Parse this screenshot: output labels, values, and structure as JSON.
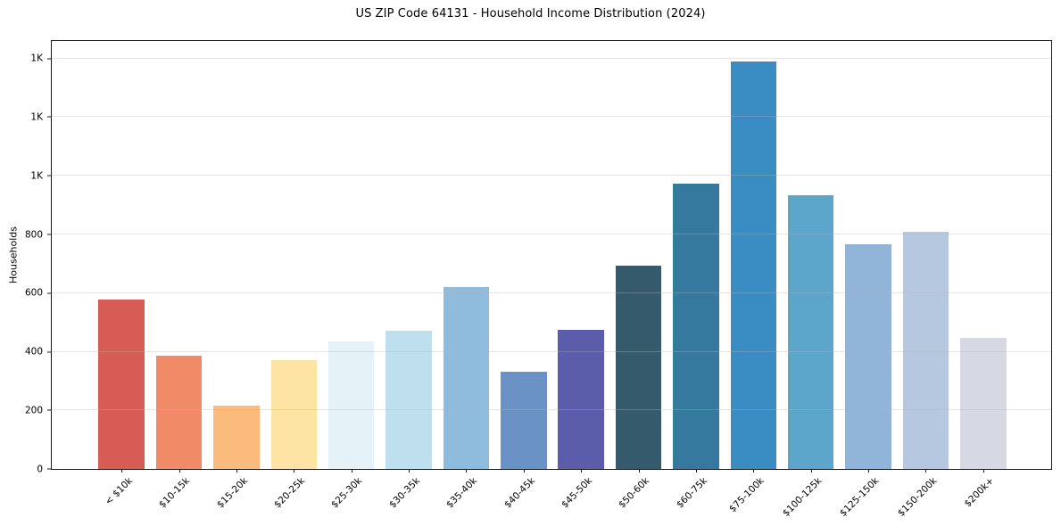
{
  "figure": {
    "background": "#ffffff",
    "frame_color": "#1a1a1a",
    "grid_color": "#ebebeb",
    "text_color": "#000000"
  },
  "chart_data": {
    "type": "bar",
    "title": "US ZIP Code 64131 - Household Income Distribution (2024)",
    "xlabel": "",
    "ylabel": "Households",
    "categories": [
      "< $10k",
      "$10-15k",
      "$15-20k",
      "$20-25k",
      "$25-30k",
      "$30-35k",
      "$35-40k",
      "$40-45k",
      "$45-50k",
      "$50-60k",
      "$60-75k",
      "$75-100k",
      "$100-125k",
      "$125-150k",
      "$150-200k",
      "$200k+"
    ],
    "values": [
      578,
      387,
      216,
      371,
      435,
      472,
      620,
      332,
      476,
      694,
      972,
      1390,
      934,
      766,
      809,
      447
    ],
    "colors": [
      "#d65c55",
      "#f18a67",
      "#fbbb7d",
      "#fde4a5",
      "#e5f2f7",
      "#bedfee",
      "#8fbcdc",
      "#6b92c5",
      "#5b5caa",
      "#355a6b",
      "#36799f",
      "#398dc2",
      "#5ca6cb",
      "#90b5d8",
      "#b6c8df",
      "#d6d9e4"
    ],
    "ylim": [
      0,
      1460
    ],
    "y_ticks": [
      0,
      200,
      400,
      600,
      800,
      1000,
      1200,
      1400
    ],
    "y_tick_labels": [
      "0",
      "200",
      "400",
      "600",
      "800",
      "1K",
      "1K",
      "1K"
    ],
    "grid": "horizontal",
    "legend": "none",
    "x_tick_rotation": 45
  }
}
